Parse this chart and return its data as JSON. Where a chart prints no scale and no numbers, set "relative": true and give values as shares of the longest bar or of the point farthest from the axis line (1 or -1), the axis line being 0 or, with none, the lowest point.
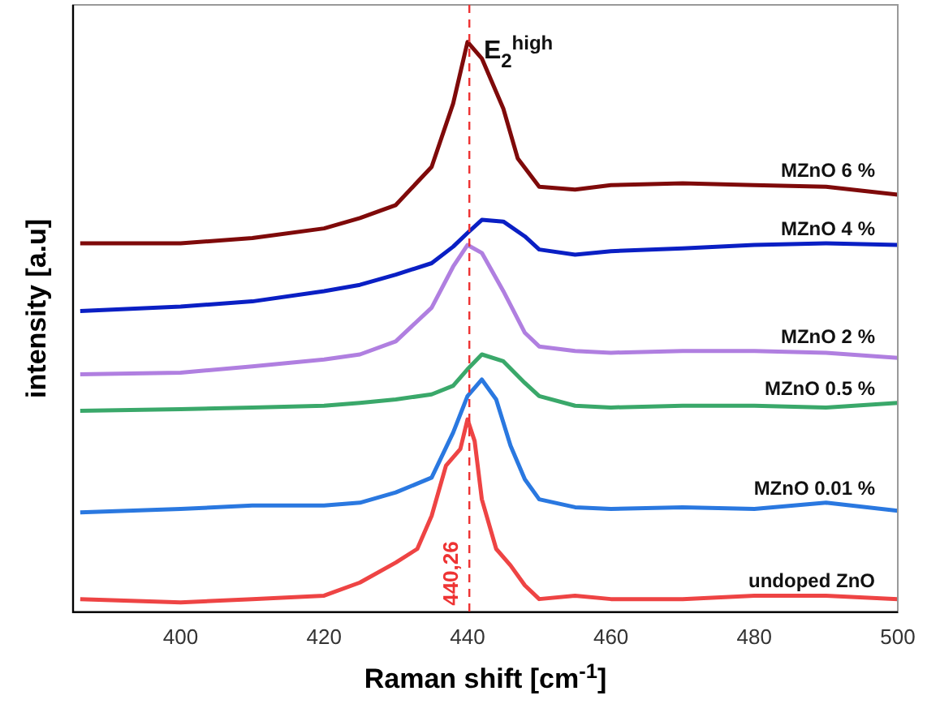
{
  "chart_data": {
    "type": "line",
    "relative": true,
    "xlabel": "Raman shift [cm$^{-1}$]",
    "ylabel": "intensity [a.u]",
    "xlim": [
      385,
      500
    ],
    "xticks": [
      400,
      420,
      440,
      460,
      480,
      500
    ],
    "grid": false,
    "legend": false,
    "marker": "none",
    "line_style": "solid",
    "series": [
      {
        "name": "MZnO 6 %",
        "color": "#7f0a0a",
        "x": [
          386,
          400,
          410,
          420,
          425,
          430,
          435,
          438,
          440,
          442,
          445,
          447,
          450,
          455,
          460,
          470,
          480,
          490,
          500
        ],
        "values": [
          0.647,
          0.647,
          0.656,
          0.673,
          0.691,
          0.714,
          0.781,
          0.892,
          1,
          0.971,
          0.883,
          0.796,
          0.746,
          0.741,
          0.749,
          0.752,
          0.749,
          0.746,
          0.732
        ]
      },
      {
        "name": "MZnO 4 %",
        "color": "#0a1fc4",
        "x": [
          386,
          400,
          410,
          420,
          425,
          430,
          435,
          438,
          440,
          442,
          445,
          448,
          450,
          455,
          460,
          470,
          480,
          490,
          500
        ],
        "values": [
          0.528,
          0.536,
          0.545,
          0.563,
          0.574,
          0.592,
          0.612,
          0.641,
          0.665,
          0.688,
          0.685,
          0.659,
          0.636,
          0.627,
          0.633,
          0.638,
          0.644,
          0.647,
          0.644
        ]
      },
      {
        "name": "MZnO 2 %",
        "color": "#b07fe0",
        "x": [
          386,
          400,
          410,
          420,
          425,
          430,
          435,
          438,
          440,
          442,
          445,
          448,
          450,
          455,
          460,
          470,
          480,
          490,
          500
        ],
        "values": [
          0.417,
          0.42,
          0.431,
          0.443,
          0.452,
          0.475,
          0.534,
          0.606,
          0.644,
          0.63,
          0.563,
          0.49,
          0.466,
          0.458,
          0.455,
          0.458,
          0.458,
          0.455,
          0.446
        ]
      },
      {
        "name": "MZnO 0.5 %",
        "color": "#3aa86a",
        "x": [
          386,
          400,
          410,
          420,
          425,
          430,
          435,
          438,
          440,
          442,
          445,
          448,
          450,
          455,
          460,
          470,
          480,
          490,
          500
        ],
        "values": [
          0.353,
          0.356,
          0.359,
          0.362,
          0.367,
          0.373,
          0.382,
          0.397,
          0.426,
          0.452,
          0.44,
          0.402,
          0.379,
          0.362,
          0.359,
          0.362,
          0.362,
          0.359,
          0.367
        ]
      },
      {
        "name": "MZnO 0.01 %",
        "color": "#2a78e0",
        "x": [
          386,
          400,
          410,
          420,
          425,
          430,
          435,
          438,
          440,
          442,
          444,
          446,
          448,
          450,
          455,
          460,
          470,
          480,
          490,
          500
        ],
        "values": [
          0.175,
          0.181,
          0.187,
          0.187,
          0.192,
          0.21,
          0.236,
          0.315,
          0.379,
          0.408,
          0.373,
          0.292,
          0.233,
          0.198,
          0.184,
          0.181,
          0.184,
          0.181,
          0.192,
          0.178
        ]
      },
      {
        "name": "undoped ZnO",
        "color": "#ee4444",
        "x": [
          386,
          400,
          410,
          420,
          425,
          430,
          433,
          435,
          437,
          439,
          440,
          441,
          442,
          444,
          446,
          448,
          450,
          455,
          460,
          470,
          480,
          490,
          500
        ],
        "values": [
          0.023,
          0.017,
          0.023,
          0.029,
          0.052,
          0.087,
          0.111,
          0.169,
          0.257,
          0.286,
          0.338,
          0.3,
          0.198,
          0.111,
          0.082,
          0.047,
          0.023,
          0.029,
          0.023,
          0.023,
          0.029,
          0.029,
          0.023
        ]
      }
    ],
    "ref_lines": [
      {
        "axis": "x",
        "value": 440.26,
        "label": "440,26",
        "color": "#ee3333",
        "line_style": "dashed"
      }
    ],
    "annotations": [
      {
        "text": "E$_{2}$$^{high}$",
        "x": 440,
        "y": 1
      }
    ]
  }
}
